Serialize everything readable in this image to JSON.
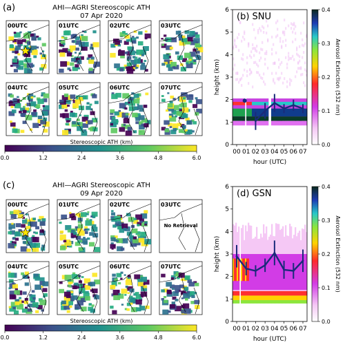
{
  "figure": {
    "panel_a": {
      "letter": "(a)",
      "title_line1": "AHI—AGRI Stereoscopic ATH",
      "title_line2": "07 Apr 2020",
      "hours": [
        "00UTC",
        "01UTC",
        "02UTC",
        "03UTC",
        "04UTC",
        "05UTC",
        "06UTC",
        "07UTC"
      ],
      "colorbar_label": "Stereoscopic ATH (km)",
      "colorbar_ticks": [
        "0.0",
        "1.2",
        "2.4",
        "3.6",
        "4.8",
        "6.0"
      ]
    },
    "panel_c": {
      "letter": "(c)",
      "title_line1": "AHI—AGRI Stereoscopic ATH",
      "title_line2": "09 Apr 2020",
      "hours": [
        "00UTC",
        "01UTC",
        "02UTC",
        "03UTC",
        "04UTC",
        "05UTC",
        "06UTC",
        "07UTC"
      ],
      "no_retrieval": "No Retrieval",
      "colorbar_label": "Stereoscopic ATH (km)",
      "colorbar_ticks": [
        "0.0",
        "1.2",
        "2.4",
        "3.6",
        "4.8",
        "6.0"
      ]
    }
  },
  "chart_data": [
    {
      "type": "line",
      "panel": "(b) SNU",
      "xlabel": "hour (UTC)",
      "ylabel": "height (km)",
      "xticks": [
        "00",
        "01",
        "02",
        "03",
        "04",
        "05",
        "06",
        "07"
      ],
      "yticks": [
        "0",
        "1",
        "2",
        "3",
        "4",
        "5",
        "6"
      ],
      "ylim": [
        0,
        6
      ],
      "colorbar_label": "Aerosol Extinction (532 nm)",
      "colorbar_ticks": [
        "0.0",
        "0.1",
        "0.2",
        "0.3",
        "0.4"
      ],
      "series": [
        {
          "x": [
            0.85,
            2.0,
            3.0,
            4.0,
            5.0,
            6.0,
            7.0
          ],
          "y": [
            1.95,
            1.05,
            1.5,
            1.85,
            1.6,
            1.75,
            1.6
          ],
          "err": [
            0.0,
            0.4,
            0.35,
            0.4,
            0.2,
            0.25,
            0.2
          ]
        }
      ]
    },
    {
      "type": "line",
      "panel": "(d) GSN",
      "xlabel": "hour (UTC)",
      "ylabel": "height (km)",
      "xticks": [
        "00",
        "01",
        "02",
        "03",
        "04",
        "05",
        "06",
        "07"
      ],
      "yticks": [
        "0",
        "1",
        "2",
        "3",
        "4",
        "5",
        "6"
      ],
      "ylim": [
        0,
        6
      ],
      "colorbar_label": "Aerosol Extinction (532 nm)",
      "colorbar_ticks": [
        "0.0",
        "0.1",
        "0.2",
        "0.3",
        "0.4"
      ],
      "series": [
        {
          "x": [
            0.0,
            1.0,
            2.0,
            3.0,
            4.0,
            5.0,
            6.0,
            7.0
          ],
          "y": [
            2.9,
            2.35,
            2.25,
            2.5,
            3.05,
            2.3,
            2.25,
            2.7
          ],
          "err": [
            0.5,
            0.3,
            0.25,
            0.3,
            0.55,
            0.4,
            0.35,
            0.5
          ]
        }
      ]
    }
  ]
}
